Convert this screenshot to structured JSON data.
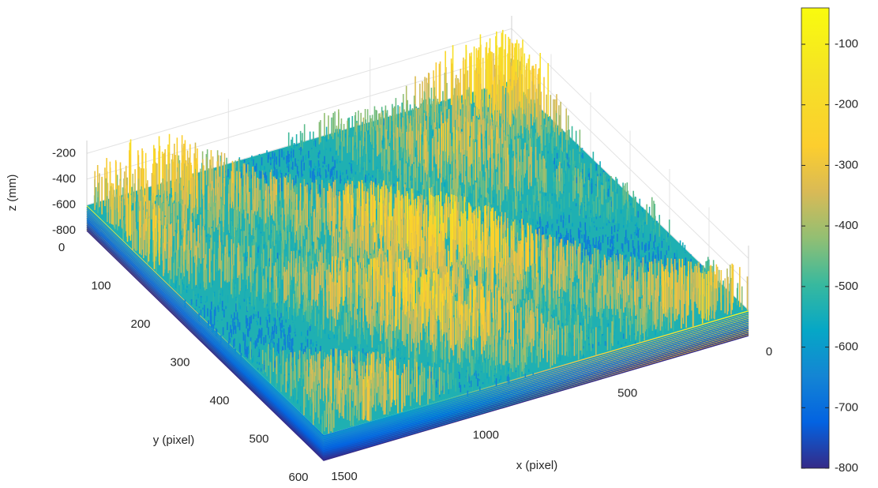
{
  "chart_data": {
    "type": "surface3d",
    "colormap": "parula",
    "xlabel": "x (pixel)",
    "ylabel": "y (pixel)",
    "zlabel": "z (mm)",
    "xlim": [
      0,
      1500
    ],
    "xticks": [
      0,
      500,
      1000,
      1500
    ],
    "ylim": [
      0,
      600
    ],
    "yticks": [
      0,
      100,
      200,
      300,
      400,
      500,
      600
    ],
    "zlim": [
      -800,
      -100
    ],
    "zticks": [
      -800,
      -600,
      -400,
      -200
    ],
    "clim": [
      -800,
      -40
    ],
    "cticks": [
      -800,
      -700,
      -600,
      -500,
      -400,
      -300,
      -200,
      -100
    ],
    "grid": true
  }
}
